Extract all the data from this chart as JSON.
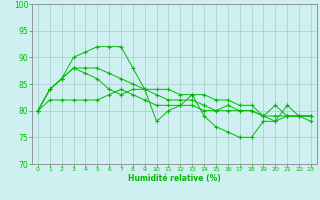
{
  "title": "",
  "xlabel": "Humidité relative (%)",
  "ylabel": "",
  "xlim": [
    -0.5,
    23.5
  ],
  "ylim": [
    70,
    100
  ],
  "yticks": [
    70,
    75,
    80,
    85,
    90,
    95,
    100
  ],
  "xticks": [
    0,
    1,
    2,
    3,
    4,
    5,
    6,
    7,
    8,
    9,
    10,
    11,
    12,
    13,
    14,
    15,
    16,
    17,
    18,
    19,
    20,
    21,
    22,
    23
  ],
  "bg_color": "#cff0f0",
  "grid_color": "#aacccc",
  "line_color": "#00bb00",
  "series": [
    [
      80,
      82,
      82,
      82,
      82,
      82,
      83,
      84,
      83,
      82,
      81,
      81,
      81,
      81,
      80,
      80,
      81,
      80,
      80,
      79,
      81,
      79,
      79,
      79
    ],
    [
      80,
      84,
      86,
      90,
      91,
      92,
      92,
      92,
      88,
      84,
      78,
      80,
      81,
      83,
      79,
      77,
      76,
      75,
      75,
      78,
      78,
      81,
      79,
      78
    ],
    [
      80,
      84,
      86,
      88,
      88,
      88,
      87,
      86,
      85,
      84,
      83,
      82,
      82,
      82,
      81,
      80,
      80,
      80,
      80,
      79,
      79,
      79,
      79,
      79
    ],
    [
      80,
      84,
      86,
      88,
      87,
      86,
      84,
      83,
      84,
      84,
      84,
      84,
      83,
      83,
      83,
      82,
      82,
      81,
      81,
      79,
      78,
      79,
      79,
      79
    ]
  ],
  "figsize": [
    3.2,
    2.0
  ],
  "dpi": 100
}
